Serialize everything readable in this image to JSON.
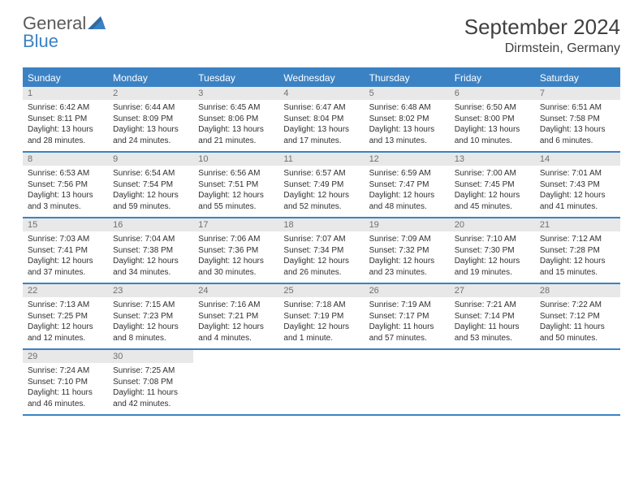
{
  "brand": {
    "part1": "General",
    "part2": "Blue"
  },
  "title": "September 2024",
  "location": "Dirmstein, Germany",
  "accent_color": "#3b82c4",
  "daynum_bg": "#e8e8e8",
  "text_color": "#303030",
  "day_headers": [
    "Sunday",
    "Monday",
    "Tuesday",
    "Wednesday",
    "Thursday",
    "Friday",
    "Saturday"
  ],
  "weeks": [
    [
      {
        "n": "1",
        "sr": "6:42 AM",
        "ss": "8:11 PM",
        "dl": "13 hours and 28 minutes."
      },
      {
        "n": "2",
        "sr": "6:44 AM",
        "ss": "8:09 PM",
        "dl": "13 hours and 24 minutes."
      },
      {
        "n": "3",
        "sr": "6:45 AM",
        "ss": "8:06 PM",
        "dl": "13 hours and 21 minutes."
      },
      {
        "n": "4",
        "sr": "6:47 AM",
        "ss": "8:04 PM",
        "dl": "13 hours and 17 minutes."
      },
      {
        "n": "5",
        "sr": "6:48 AM",
        "ss": "8:02 PM",
        "dl": "13 hours and 13 minutes."
      },
      {
        "n": "6",
        "sr": "6:50 AM",
        "ss": "8:00 PM",
        "dl": "13 hours and 10 minutes."
      },
      {
        "n": "7",
        "sr": "6:51 AM",
        "ss": "7:58 PM",
        "dl": "13 hours and 6 minutes."
      }
    ],
    [
      {
        "n": "8",
        "sr": "6:53 AM",
        "ss": "7:56 PM",
        "dl": "13 hours and 3 minutes."
      },
      {
        "n": "9",
        "sr": "6:54 AM",
        "ss": "7:54 PM",
        "dl": "12 hours and 59 minutes."
      },
      {
        "n": "10",
        "sr": "6:56 AM",
        "ss": "7:51 PM",
        "dl": "12 hours and 55 minutes."
      },
      {
        "n": "11",
        "sr": "6:57 AM",
        "ss": "7:49 PM",
        "dl": "12 hours and 52 minutes."
      },
      {
        "n": "12",
        "sr": "6:59 AM",
        "ss": "7:47 PM",
        "dl": "12 hours and 48 minutes."
      },
      {
        "n": "13",
        "sr": "7:00 AM",
        "ss": "7:45 PM",
        "dl": "12 hours and 45 minutes."
      },
      {
        "n": "14",
        "sr": "7:01 AM",
        "ss": "7:43 PM",
        "dl": "12 hours and 41 minutes."
      }
    ],
    [
      {
        "n": "15",
        "sr": "7:03 AM",
        "ss": "7:41 PM",
        "dl": "12 hours and 37 minutes."
      },
      {
        "n": "16",
        "sr": "7:04 AM",
        "ss": "7:38 PM",
        "dl": "12 hours and 34 minutes."
      },
      {
        "n": "17",
        "sr": "7:06 AM",
        "ss": "7:36 PM",
        "dl": "12 hours and 30 minutes."
      },
      {
        "n": "18",
        "sr": "7:07 AM",
        "ss": "7:34 PM",
        "dl": "12 hours and 26 minutes."
      },
      {
        "n": "19",
        "sr": "7:09 AM",
        "ss": "7:32 PM",
        "dl": "12 hours and 23 minutes."
      },
      {
        "n": "20",
        "sr": "7:10 AM",
        "ss": "7:30 PM",
        "dl": "12 hours and 19 minutes."
      },
      {
        "n": "21",
        "sr": "7:12 AM",
        "ss": "7:28 PM",
        "dl": "12 hours and 15 minutes."
      }
    ],
    [
      {
        "n": "22",
        "sr": "7:13 AM",
        "ss": "7:25 PM",
        "dl": "12 hours and 12 minutes."
      },
      {
        "n": "23",
        "sr": "7:15 AM",
        "ss": "7:23 PM",
        "dl": "12 hours and 8 minutes."
      },
      {
        "n": "24",
        "sr": "7:16 AM",
        "ss": "7:21 PM",
        "dl": "12 hours and 4 minutes."
      },
      {
        "n": "25",
        "sr": "7:18 AM",
        "ss": "7:19 PM",
        "dl": "12 hours and 1 minute."
      },
      {
        "n": "26",
        "sr": "7:19 AM",
        "ss": "7:17 PM",
        "dl": "11 hours and 57 minutes."
      },
      {
        "n": "27",
        "sr": "7:21 AM",
        "ss": "7:14 PM",
        "dl": "11 hours and 53 minutes."
      },
      {
        "n": "28",
        "sr": "7:22 AM",
        "ss": "7:12 PM",
        "dl": "11 hours and 50 minutes."
      }
    ],
    [
      {
        "n": "29",
        "sr": "7:24 AM",
        "ss": "7:10 PM",
        "dl": "11 hours and 46 minutes."
      },
      {
        "n": "30",
        "sr": "7:25 AM",
        "ss": "7:08 PM",
        "dl": "11 hours and 42 minutes."
      },
      null,
      null,
      null,
      null,
      null
    ]
  ],
  "labels": {
    "sunrise": "Sunrise: ",
    "sunset": "Sunset: ",
    "daylight": "Daylight: "
  }
}
